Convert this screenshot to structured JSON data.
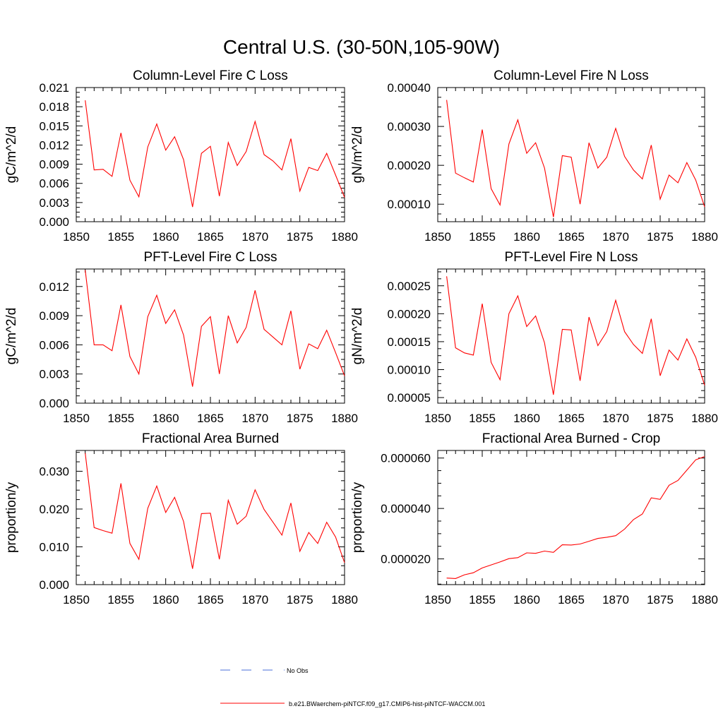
{
  "title": "Central U.S. (30-50N,105-90W)",
  "series_color": "#ff0000",
  "chart_data": [
    {
      "type": "line",
      "title": "Column-Level Fire C Loss",
      "ylabel": "gC/m^2/d",
      "xlim": [
        1850,
        1880
      ],
      "ylim": [
        0.0,
        0.021
      ],
      "xticks": [
        "1850",
        "1855",
        "1860",
        "1865",
        "1870",
        "1875",
        "1880"
      ],
      "yticks": [
        "0.000",
        "0.003",
        "0.006",
        "0.009",
        "0.012",
        "0.015",
        "0.018",
        "0.021"
      ],
      "x": [
        1851,
        1852,
        1853,
        1854,
        1855,
        1856,
        1857,
        1858,
        1859,
        1860,
        1861,
        1862,
        1863,
        1864,
        1865,
        1866,
        1867,
        1868,
        1869,
        1870,
        1871,
        1872,
        1873,
        1874,
        1875,
        1876,
        1877,
        1878,
        1879,
        1880
      ],
      "values": [
        0.019,
        0.0081,
        0.0082,
        0.0071,
        0.0139,
        0.0065,
        0.0039,
        0.0117,
        0.0153,
        0.0112,
        0.0133,
        0.0097,
        0.0023,
        0.0107,
        0.0118,
        0.004,
        0.0124,
        0.0088,
        0.011,
        0.0157,
        0.0105,
        0.0095,
        0.0081,
        0.013,
        0.0048,
        0.0085,
        0.008,
        0.0107,
        0.0073,
        0.0038
      ]
    },
    {
      "type": "line",
      "title": "Column-Level Fire N Loss",
      "ylabel": "gN/m^2/d",
      "xlim": [
        1850,
        1880
      ],
      "ylim": [
        5.5e-05,
        0.0004
      ],
      "xticks": [
        "1850",
        "1855",
        "1860",
        "1865",
        "1870",
        "1875",
        "1880"
      ],
      "yticks": [
        "0.00010",
        "0.00020",
        "0.00030",
        "0.00040"
      ],
      "x": [
        1851,
        1852,
        1853,
        1854,
        1855,
        1856,
        1857,
        1858,
        1859,
        1860,
        1861,
        1862,
        1863,
        1864,
        1865,
        1866,
        1867,
        1868,
        1869,
        1870,
        1871,
        1872,
        1873,
        1874,
        1875,
        1876,
        1877,
        1878,
        1879,
        1880
      ],
      "values": [
        0.000368,
        0.00018,
        0.000168,
        0.000157,
        0.000292,
        0.00014,
        9.8e-05,
        0.000255,
        0.000317,
        0.000231,
        0.000258,
        0.000193,
        6.7e-05,
        0.000225,
        0.000221,
        0.0001,
        0.000258,
        0.000193,
        0.000221,
        0.000295,
        0.000223,
        0.000188,
        0.000165,
        0.000252,
        0.000113,
        0.000175,
        0.000155,
        0.000207,
        0.000162,
        9.3e-05
      ]
    },
    {
      "type": "line",
      "title": "PFT-Level Fire C Loss",
      "ylabel": "gC/m^2/d",
      "xlim": [
        1850,
        1880
      ],
      "ylim": [
        0.0,
        0.0138
      ],
      "xticks": [
        "1850",
        "1855",
        "1860",
        "1865",
        "1870",
        "1875",
        "1880"
      ],
      "yticks": [
        "0.000",
        "0.003",
        "0.006",
        "0.009",
        "0.012"
      ],
      "x": [
        1851,
        1852,
        1853,
        1854,
        1855,
        1856,
        1857,
        1858,
        1859,
        1860,
        1861,
        1862,
        1863,
        1864,
        1865,
        1866,
        1867,
        1868,
        1869,
        1870,
        1871,
        1872,
        1873,
        1874,
        1875,
        1876,
        1877,
        1878,
        1879,
        1880
      ],
      "values": [
        0.0137,
        0.006,
        0.006,
        0.0054,
        0.0101,
        0.0048,
        0.003,
        0.0089,
        0.0111,
        0.0082,
        0.0096,
        0.007,
        0.0017,
        0.0079,
        0.0089,
        0.003,
        0.009,
        0.0062,
        0.0078,
        0.0116,
        0.0076,
        0.0068,
        0.006,
        0.0095,
        0.0035,
        0.0061,
        0.0056,
        0.0075,
        0.0052,
        0.0028
      ]
    },
    {
      "type": "line",
      "title": "PFT-Level Fire N Loss",
      "ylabel": "gN/m^2/d",
      "xlim": [
        1850,
        1880
      ],
      "ylim": [
        4e-05,
        0.00028
      ],
      "xticks": [
        "1850",
        "1855",
        "1860",
        "1865",
        "1870",
        "1875",
        "1880"
      ],
      "yticks": [
        "0.00005",
        "0.00010",
        "0.00015",
        "0.00020",
        "0.00025"
      ],
      "x": [
        1851,
        1852,
        1853,
        1854,
        1855,
        1856,
        1857,
        1858,
        1859,
        1860,
        1861,
        1862,
        1863,
        1864,
        1865,
        1866,
        1867,
        1868,
        1869,
        1870,
        1871,
        1872,
        1873,
        1874,
        1875,
        1876,
        1877,
        1878,
        1879,
        1880
      ],
      "values": [
        0.000267,
        0.000139,
        0.00013,
        0.000126,
        0.000218,
        0.000113,
        8.2e-05,
        0.0002,
        0.000232,
        0.000177,
        0.000196,
        0.000148,
        5.5e-05,
        0.000172,
        0.000171,
        8e-05,
        0.000194,
        0.000143,
        0.000168,
        0.000224,
        0.000168,
        0.000145,
        0.000129,
        0.000191,
        8.9e-05,
        0.000135,
        0.000117,
        0.000155,
        0.000122,
        7.2e-05
      ]
    },
    {
      "type": "line",
      "title": "Fractional Area Burned",
      "ylabel": "proportion/y",
      "xlim": [
        1850,
        1880
      ],
      "ylim": [
        0.0,
        0.0355
      ],
      "xticks": [
        "1850",
        "1855",
        "1860",
        "1865",
        "1870",
        "1875",
        "1880"
      ],
      "yticks": [
        "0.000",
        "0.010",
        "0.020",
        "0.030"
      ],
      "x": [
        1851,
        1852,
        1853,
        1854,
        1855,
        1856,
        1857,
        1858,
        1859,
        1860,
        1861,
        1862,
        1863,
        1864,
        1865,
        1866,
        1867,
        1868,
        1869,
        1870,
        1871,
        1872,
        1873,
        1874,
        1875,
        1876,
        1877,
        1878,
        1879,
        1880
      ],
      "values": [
        0.0348,
        0.0151,
        0.0143,
        0.0136,
        0.0268,
        0.0109,
        0.0067,
        0.0202,
        0.0261,
        0.0191,
        0.0231,
        0.0167,
        0.0042,
        0.0188,
        0.0189,
        0.0067,
        0.0223,
        0.016,
        0.0181,
        0.0251,
        0.0199,
        0.0165,
        0.0131,
        0.0216,
        0.0088,
        0.0138,
        0.0109,
        0.0165,
        0.0126,
        0.0058
      ]
    },
    {
      "type": "line",
      "title": "Fractional Area Burned - Crop",
      "ylabel": "proportion/y",
      "xlim": [
        1850,
        1880
      ],
      "ylim": [
        9.8e-06,
        6.3e-05
      ],
      "xticks": [
        "1850",
        "1855",
        "1860",
        "1865",
        "1870",
        "1875",
        "1880"
      ],
      "yticks": [
        "0.000020",
        "0.000040",
        "0.000060"
      ],
      "x": [
        1851,
        1852,
        1853,
        1854,
        1855,
        1856,
        1857,
        1858,
        1859,
        1860,
        1861,
        1862,
        1863,
        1864,
        1865,
        1866,
        1867,
        1868,
        1869,
        1870,
        1871,
        1872,
        1873,
        1874,
        1875,
        1876,
        1877,
        1878,
        1879,
        1880
      ],
      "values": [
        1.24e-05,
        1.22e-05,
        1.37e-05,
        1.45e-05,
        1.64e-05,
        1.76e-05,
        1.88e-05,
        2.01e-05,
        2.05e-05,
        2.24e-05,
        2.22e-05,
        2.31e-05,
        2.26e-05,
        2.56e-05,
        2.55e-05,
        2.59e-05,
        2.7e-05,
        2.81e-05,
        2.86e-05,
        2.92e-05,
        3.18e-05,
        3.56e-05,
        3.78e-05,
        4.42e-05,
        4.36e-05,
        4.92e-05,
        5.11e-05,
        5.52e-05,
        5.93e-05,
        6.06e-05
      ]
    }
  ],
  "legend": [
    {
      "label": "No Obs",
      "color": "#4a6fd9",
      "dash": true
    },
    {
      "label": "b.e21.BWaerchem-piNTCF.f09_g17.CMIP6-hist-piNTCF-WACCM.001",
      "color": "#ff0000",
      "dash": false
    }
  ]
}
